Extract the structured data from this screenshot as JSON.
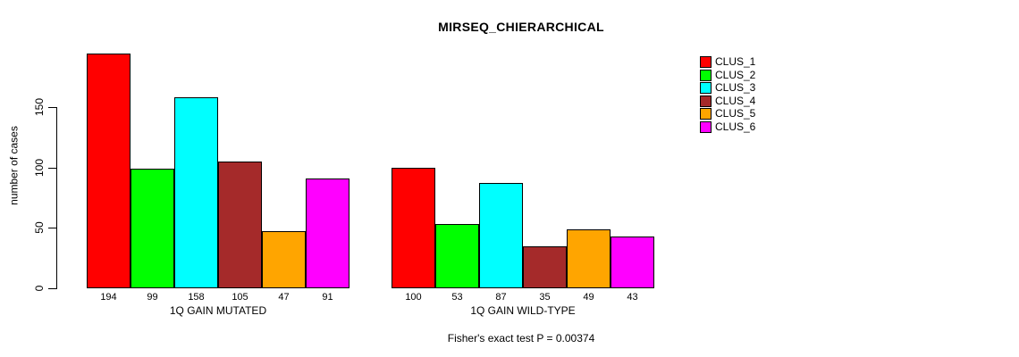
{
  "title": "MIRSEQ_CHIERARCHICAL",
  "caption": "Fisher's exact test P = 0.00374",
  "y_axis": {
    "title": "number of cases",
    "tick_labels": [
      "0",
      "50",
      "100",
      "150"
    ]
  },
  "legend_entries": [
    "CLUS_1",
    "CLUS_2",
    "CLUS_3",
    "CLUS_4",
    "CLUS_5",
    "CLUS_6"
  ],
  "chart_data": {
    "type": "bar",
    "title": "MIRSEQ_CHIERARCHICAL",
    "ylabel": "number of cases",
    "xlabel": "",
    "categories": [
      "1Q GAIN MUTATED",
      "1Q GAIN WILD-TYPE"
    ],
    "series": [
      {
        "name": "CLUS_1",
        "color": "#ff0000",
        "values": [
          194,
          100
        ]
      },
      {
        "name": "CLUS_2",
        "color": "#00ff00",
        "values": [
          99,
          53
        ]
      },
      {
        "name": "CLUS_3",
        "color": "#00ffff",
        "values": [
          158,
          87
        ]
      },
      {
        "name": "CLUS_4",
        "color": "#a52a2a",
        "values": [
          105,
          35
        ]
      },
      {
        "name": "CLUS_5",
        "color": "#ffa500",
        "values": [
          47,
          49
        ]
      },
      {
        "name": "CLUS_6",
        "color": "#ff00ff",
        "values": [
          91,
          43
        ]
      }
    ],
    "y_ticks": [
      0,
      50,
      100,
      150
    ],
    "ylim": [
      0,
      195
    ],
    "bar_value_labels_shown": true,
    "grid": false,
    "legend_position": "right",
    "annotation": "Fisher's exact test P = 0.00374"
  }
}
